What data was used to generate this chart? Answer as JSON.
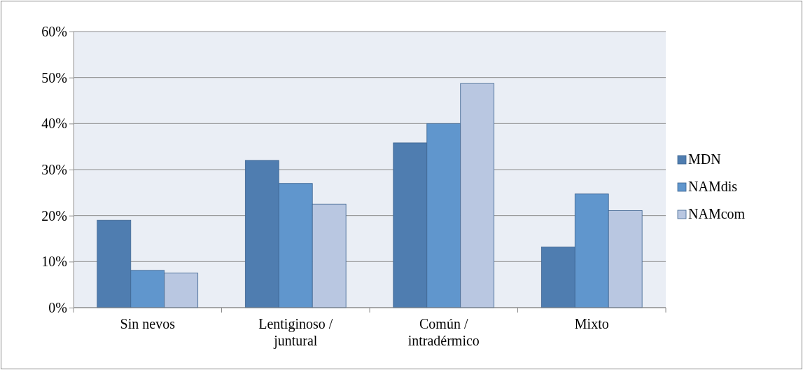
{
  "chart_data": {
    "type": "bar",
    "categories": [
      "Sin nevos",
      "Lentiginoso / juntural",
      "Común / intradérmico",
      "Mixto"
    ],
    "series": [
      {
        "name": "MDN",
        "color": "#4f7db0",
        "values": [
          19,
          32,
          35.8,
          13.2
        ]
      },
      {
        "name": "NAMdis",
        "color": "#6096cd",
        "values": [
          8.1,
          27,
          40,
          24.7
        ]
      },
      {
        "name": "NAMcom",
        "color": "#b9c7e1",
        "values": [
          7.5,
          22.5,
          48.7,
          21.1
        ]
      }
    ],
    "ylim": [
      0,
      60
    ],
    "yticks": [
      {
        "value": 0,
        "label": "0%"
      },
      {
        "value": 10,
        "label": "10%"
      },
      {
        "value": 20,
        "label": "20%"
      },
      {
        "value": 30,
        "label": "30%"
      },
      {
        "value": 40,
        "label": "40%"
      },
      {
        "value": 50,
        "label": "50%"
      },
      {
        "value": 60,
        "label": "60%"
      }
    ],
    "grid": "y",
    "legend": "right"
  }
}
